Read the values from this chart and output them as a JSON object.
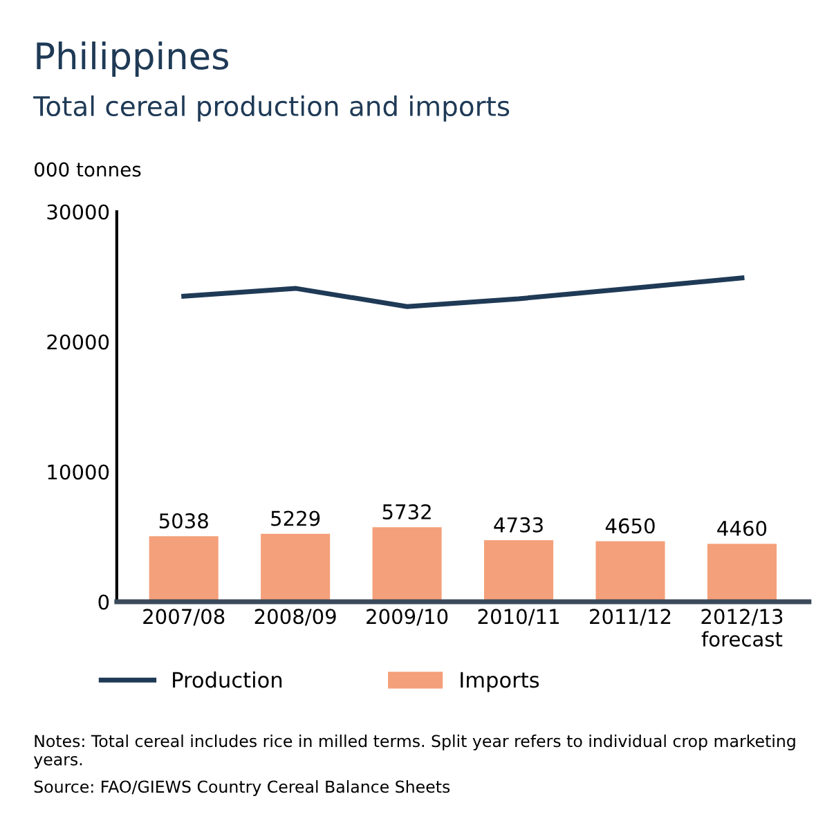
{
  "chart_data": {
    "type": "bar",
    "title": "Philippines",
    "subtitle": "Total cereal production and imports",
    "ylabel": "000 tonnes",
    "categories": [
      "2007/08",
      "2008/09",
      "2009/10",
      "2010/11",
      "2011/12",
      "2012/13\nforecast"
    ],
    "series": [
      {
        "name": "Production",
        "type": "line",
        "color": "#1f3a56",
        "values": [
          23500,
          24100,
          22700,
          23300,
          24100,
          24900
        ]
      },
      {
        "name": "Imports",
        "color": "#f4a07a",
        "values": [
          5038,
          5229,
          5732,
          4733,
          4650,
          4460
        ],
        "data_labels": true
      }
    ],
    "ylim": [
      0,
      30000
    ],
    "yticks": [
      0,
      10000,
      20000,
      30000
    ],
    "grid": false,
    "legend": "bottom",
    "marker": "none",
    "annotations": [
      "Notes: Total cereal includes rice in milled terms. Split year refers to individual crop marketing years.",
      "Source: FAO/GIEWS Country Cereal Balance Sheets"
    ]
  }
}
